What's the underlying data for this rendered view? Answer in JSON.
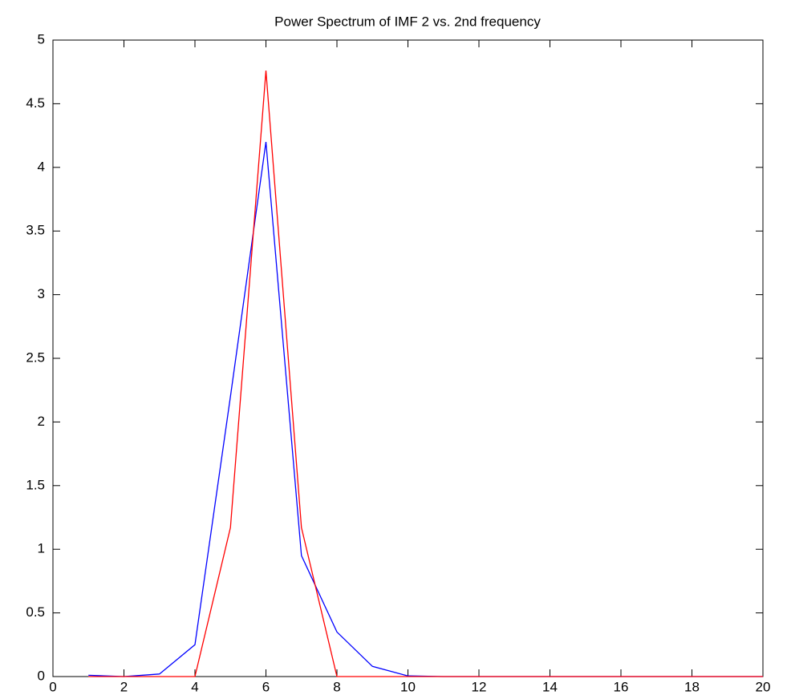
{
  "chart_data": {
    "type": "line",
    "title": "Power Spectrum of IMF 2 vs. 2nd frequency",
    "x": [
      1,
      2,
      3,
      4,
      5,
      6,
      7,
      8,
      9,
      10,
      11,
      12,
      13,
      14,
      15,
      16,
      17,
      18,
      19,
      20
    ],
    "series": [
      {
        "color": "#0000ff",
        "values": [
          0.01,
          0,
          0.02,
          0.25,
          2.2,
          4.2,
          0.95,
          0.35,
          0.08,
          0.005,
          0,
          0,
          0,
          0,
          0,
          0,
          0,
          0,
          0,
          0
        ]
      },
      {
        "color": "#ff0000",
        "values": [
          0,
          0,
          0,
          0,
          1.17,
          4.76,
          1.17,
          0,
          0,
          0,
          0,
          0,
          0,
          0,
          0,
          0,
          0,
          0,
          0,
          0
        ]
      }
    ],
    "xlim": [
      0,
      20
    ],
    "xticks": [
      0,
      2,
      4,
      6,
      8,
      10,
      12,
      14,
      16,
      18,
      20
    ],
    "ylim": [
      0,
      5
    ],
    "yticks": [
      0,
      0.5,
      1,
      1.5,
      2,
      2.5,
      3,
      3.5,
      4,
      4.5,
      5
    ],
    "grid": false
  }
}
